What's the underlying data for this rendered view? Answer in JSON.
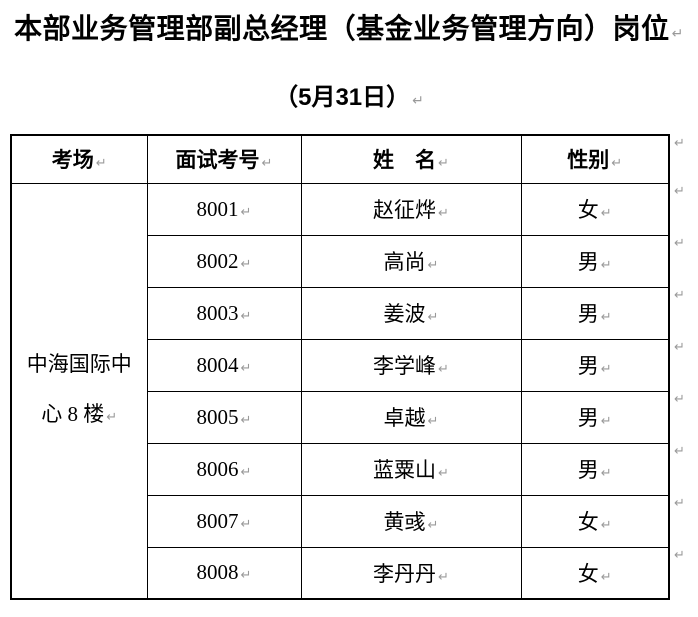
{
  "page": {
    "title_line1": "本部业务管理部副总经理（基金业务管理方向）岗位",
    "title_line2": "（5月31日）",
    "pilcrow": "↵"
  },
  "table": {
    "headers": [
      "考场",
      "面试考号",
      "姓　名",
      "性别"
    ],
    "venue": {
      "line1": "中海国际中",
      "line2": "心 8 楼"
    },
    "rows": [
      {
        "id": "8001",
        "name": "赵征烨",
        "gender": "女"
      },
      {
        "id": "8002",
        "name": "高尚",
        "gender": "男"
      },
      {
        "id": "8003",
        "name": "姜波",
        "gender": "男"
      },
      {
        "id": "8004",
        "name": "李学峰",
        "gender": "男"
      },
      {
        "id": "8005",
        "name": "卓越",
        "gender": "男"
      },
      {
        "id": "8006",
        "name": "蓝粟山",
        "gender": "男"
      },
      {
        "id": "8007",
        "name": "黄彧",
        "gender": "女"
      },
      {
        "id": "8008",
        "name": "李丹丹",
        "gender": "女"
      }
    ]
  },
  "colors": {
    "text": "#000000",
    "border": "#000000",
    "formatting_mark": "#9a9a9a",
    "background": "#ffffff"
  }
}
